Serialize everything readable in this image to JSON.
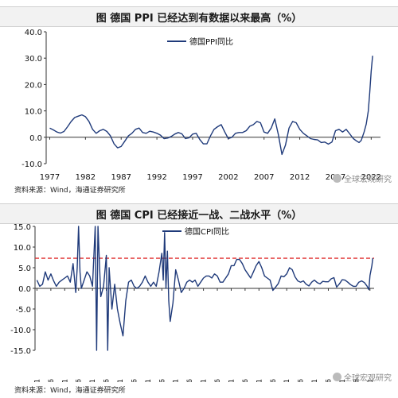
{
  "chart_data": [
    {
      "type": "line",
      "title": "图  德国 PPI 已经达到有数据以来最高（%）",
      "series": [
        {
          "name": "德国PPI同比",
          "color": "#1f3a7a",
          "points": [
            [
              1977,
              3.5
            ],
            [
              1977.5,
              2.8
            ],
            [
              1978,
              2.0
            ],
            [
              1978.5,
              1.6
            ],
            [
              1979,
              2.2
            ],
            [
              1979.5,
              4.0
            ],
            [
              1980,
              6.0
            ],
            [
              1980.5,
              7.5
            ],
            [
              1981,
              8.0
            ],
            [
              1981.5,
              8.5
            ],
            [
              1982,
              7.8
            ],
            [
              1982.5,
              6.0
            ],
            [
              1983,
              3.0
            ],
            [
              1983.5,
              1.5
            ],
            [
              1984,
              2.5
            ],
            [
              1984.5,
              3.0
            ],
            [
              1985,
              2.2
            ],
            [
              1985.5,
              0.5
            ],
            [
              1986,
              -2.5
            ],
            [
              1986.5,
              -4.0
            ],
            [
              1987,
              -3.5
            ],
            [
              1987.5,
              -1.5
            ],
            [
              1988,
              0.5
            ],
            [
              1988.5,
              1.5
            ],
            [
              1989,
              3.0
            ],
            [
              1989.5,
              3.5
            ],
            [
              1990,
              1.8
            ],
            [
              1990.5,
              1.5
            ],
            [
              1991,
              2.3
            ],
            [
              1991.5,
              2.0
            ],
            [
              1992,
              1.5
            ],
            [
              1992.5,
              0.8
            ],
            [
              1993,
              -0.5
            ],
            [
              1993.5,
              -0.3
            ],
            [
              1994,
              0.3
            ],
            [
              1994.5,
              1.2
            ],
            [
              1995,
              1.8
            ],
            [
              1995.5,
              1.3
            ],
            [
              1996,
              -0.5
            ],
            [
              1996.5,
              -0.2
            ],
            [
              1997,
              1.2
            ],
            [
              1997.5,
              1.5
            ],
            [
              1998,
              -0.8
            ],
            [
              1998.5,
              -2.5
            ],
            [
              1999,
              -2.5
            ],
            [
              1999.5,
              0.5
            ],
            [
              2000,
              3.0
            ],
            [
              2000.5,
              4.0
            ],
            [
              2001,
              4.8
            ],
            [
              2001.5,
              2.0
            ],
            [
              2002,
              -0.5
            ],
            [
              2002.5,
              0.0
            ],
            [
              2003,
              1.5
            ],
            [
              2003.5,
              1.8
            ],
            [
              2004,
              1.8
            ],
            [
              2004.5,
              2.5
            ],
            [
              2005,
              4.2
            ],
            [
              2005.5,
              4.8
            ],
            [
              2006,
              6.0
            ],
            [
              2006.5,
              5.5
            ],
            [
              2007,
              2.0
            ],
            [
              2007.5,
              1.5
            ],
            [
              2008,
              3.5
            ],
            [
              2008.5,
              7.0
            ],
            [
              2009,
              1.0
            ],
            [
              2009.5,
              -6.5
            ],
            [
              2010,
              -3.0
            ],
            [
              2010.5,
              3.5
            ],
            [
              2011,
              6.0
            ],
            [
              2011.5,
              5.5
            ],
            [
              2012,
              3.0
            ],
            [
              2012.5,
              1.5
            ],
            [
              2013,
              0.5
            ],
            [
              2013.5,
              -0.5
            ],
            [
              2014,
              -0.8
            ],
            [
              2014.5,
              -1.0
            ],
            [
              2015,
              -2.0
            ],
            [
              2015.5,
              -1.8
            ],
            [
              2016,
              -2.6
            ],
            [
              2016.5,
              -1.8
            ],
            [
              2017,
              2.5
            ],
            [
              2017.5,
              3.0
            ],
            [
              2018,
              2.0
            ],
            [
              2018.5,
              3.0
            ],
            [
              2019,
              1.3
            ],
            [
              2019.5,
              -0.5
            ],
            [
              2020,
              -1.5
            ],
            [
              2020.3,
              -2.0
            ],
            [
              2020.6,
              -1.2
            ],
            [
              2021,
              2.0
            ],
            [
              2021.3,
              5.0
            ],
            [
              2021.6,
              10.0
            ],
            [
              2021.8,
              17.0
            ],
            [
              2022,
              25.0
            ],
            [
              2022.2,
              30.9
            ]
          ]
        }
      ],
      "xticks": [
        "1977",
        "1982",
        "1987",
        "1992",
        "1997",
        "2002",
        "2007",
        "2012",
        "2017",
        "2022"
      ],
      "yticks": [
        "40.0",
        "30.0",
        "20.0",
        "10.0",
        "0.0",
        "-10.0"
      ],
      "xlim": [
        1976.5,
        2023.3
      ],
      "ylim": [
        -10,
        40
      ],
      "legend": "top-center",
      "grid": false
    },
    {
      "type": "line",
      "title": "图  德国 CPI 已经接近一战、二战水平（%）",
      "series": [
        {
          "name": "德国CPI同比",
          "color": "#1f3a7a",
          "points": [
            [
              1901,
              2.0
            ],
            [
              1902,
              0.5
            ],
            [
              1903,
              1.0
            ],
            [
              1904,
              4.0
            ],
            [
              1905,
              2.0
            ],
            [
              1906,
              3.5
            ],
            [
              1907,
              1.8
            ],
            [
              1908,
              0.5
            ],
            [
              1909,
              1.5
            ],
            [
              1910,
              2.0
            ],
            [
              1911,
              2.5
            ],
            [
              1912,
              3.0
            ],
            [
              1913,
              1.5
            ],
            [
              1914,
              6.0
            ],
            [
              1915,
              -1.0
            ],
            [
              1915.5,
              5.0
            ],
            [
              1916,
              15.0
            ],
            [
              1916.5,
              4.0
            ],
            [
              1917,
              0.0
            ],
            [
              1918,
              2.0
            ],
            [
              1919,
              4.0
            ],
            [
              1920,
              3.0
            ],
            [
              1921,
              0.5
            ],
            [
              1922,
              15.0
            ],
            [
              1922.5,
              -15.0
            ],
            [
              1923,
              15.0
            ],
            [
              1924,
              -2.0
            ],
            [
              1925,
              0.5
            ],
            [
              1926,
              8.0
            ],
            [
              1926.5,
              -15.0
            ],
            [
              1927,
              5.0
            ],
            [
              1928,
              -5.0
            ],
            [
              1929,
              1.0
            ],
            [
              1930,
              -5.0
            ],
            [
              1931,
              -8.5
            ],
            [
              1932,
              -11.5
            ],
            [
              1933,
              -3.0
            ],
            [
              1934,
              1.5
            ],
            [
              1935,
              2.0
            ],
            [
              1936,
              0.5
            ],
            [
              1937,
              0.0
            ],
            [
              1938,
              0.5
            ],
            [
              1939,
              1.5
            ],
            [
              1940,
              3.0
            ],
            [
              1941,
              1.5
            ],
            [
              1942,
              0.5
            ],
            [
              1943,
              1.5
            ],
            [
              1944,
              0.5
            ],
            [
              1945,
              4.0
            ],
            [
              1946,
              8.5
            ],
            [
              1946.5,
              2.0
            ],
            [
              1947,
              13.5
            ],
            [
              1947.5,
              0.0
            ],
            [
              1948,
              9.0
            ],
            [
              1948.5,
              -3.0
            ],
            [
              1949,
              -8.0
            ],
            [
              1950,
              -3.5
            ],
            [
              1951,
              4.5
            ],
            [
              1952,
              2.0
            ],
            [
              1953,
              -1.0
            ],
            [
              1954,
              0.0
            ],
            [
              1955,
              1.5
            ],
            [
              1956,
              2.0
            ],
            [
              1957,
              1.5
            ],
            [
              1958,
              2.0
            ],
            [
              1959,
              0.5
            ],
            [
              1960,
              1.5
            ],
            [
              1961,
              2.5
            ],
            [
              1962,
              3.0
            ],
            [
              1963,
              3.0
            ],
            [
              1964,
              2.5
            ],
            [
              1965,
              3.5
            ],
            [
              1966,
              3.0
            ],
            [
              1967,
              1.5
            ],
            [
              1968,
              1.5
            ],
            [
              1969,
              2.5
            ],
            [
              1970,
              3.5
            ],
            [
              1971,
              5.5
            ],
            [
              1972,
              5.5
            ],
            [
              1973,
              7.0
            ],
            [
              1974,
              7.0
            ],
            [
              1975,
              6.0
            ],
            [
              1976,
              4.5
            ],
            [
              1977,
              3.5
            ],
            [
              1978,
              2.5
            ],
            [
              1979,
              4.0
            ],
            [
              1980,
              5.5
            ],
            [
              1981,
              6.5
            ],
            [
              1982,
              5.0
            ],
            [
              1983,
              3.0
            ],
            [
              1984,
              2.5
            ],
            [
              1985,
              2.0
            ],
            [
              1986,
              -0.5
            ],
            [
              1987,
              0.3
            ],
            [
              1988,
              1.2
            ],
            [
              1989,
              3.0
            ],
            [
              1990,
              2.8
            ],
            [
              1991,
              3.5
            ],
            [
              1992,
              5.0
            ],
            [
              1993,
              4.5
            ],
            [
              1994,
              2.8
            ],
            [
              1995,
              1.8
            ],
            [
              1996,
              1.5
            ],
            [
              1997,
              1.8
            ],
            [
              1998,
              1.0
            ],
            [
              1999,
              0.6
            ],
            [
              2000,
              1.5
            ],
            [
              2001,
              2.0
            ],
            [
              2002,
              1.4
            ],
            [
              2003,
              1.1
            ],
            [
              2004,
              1.7
            ],
            [
              2005,
              1.6
            ],
            [
              2006,
              1.6
            ],
            [
              2007,
              2.3
            ],
            [
              2008,
              2.6
            ],
            [
              2009,
              0.3
            ],
            [
              2010,
              1.1
            ],
            [
              2011,
              2.1
            ],
            [
              2012,
              2.0
            ],
            [
              2013,
              1.5
            ],
            [
              2014,
              0.9
            ],
            [
              2015,
              0.5
            ],
            [
              2016,
              0.5
            ],
            [
              2017,
              1.5
            ],
            [
              2018,
              1.8
            ],
            [
              2019,
              1.4
            ],
            [
              2020,
              0.5
            ],
            [
              2020.6,
              -0.3
            ],
            [
              2021,
              3.1
            ],
            [
              2021.7,
              5.5
            ],
            [
              2022,
              7.3
            ]
          ]
        }
      ],
      "reference_line": {
        "value": 7.3,
        "color": "#e03030",
        "style": "dashed"
      },
      "xticks": [
        "1901",
        "1906",
        "1911",
        "1916",
        "1921",
        "1926",
        "1931",
        "1936",
        "1941",
        "1946",
        "1951",
        "1956",
        "1961",
        "1966",
        "1971",
        "1976",
        "1981",
        "1986",
        "1991",
        "1996",
        "2001",
        "2006",
        "2011",
        "2016",
        "2021"
      ],
      "yticks": [
        "15.0",
        "10.0",
        "5.0",
        "0.0",
        "-5.0",
        "-10.0",
        "-15.0"
      ],
      "xlim": [
        1900.3,
        2022.5
      ],
      "ylim": [
        -15,
        15
      ],
      "legend": "top-left",
      "grid": false
    }
  ],
  "sources": {
    "top": "资料来源：Wind，海通证券研究所",
    "bottom": "资料来源：Wind，海通证券研究所"
  },
  "watermarks": {
    "top": "全球宏观研究",
    "bottom": "全球宏观研究"
  }
}
